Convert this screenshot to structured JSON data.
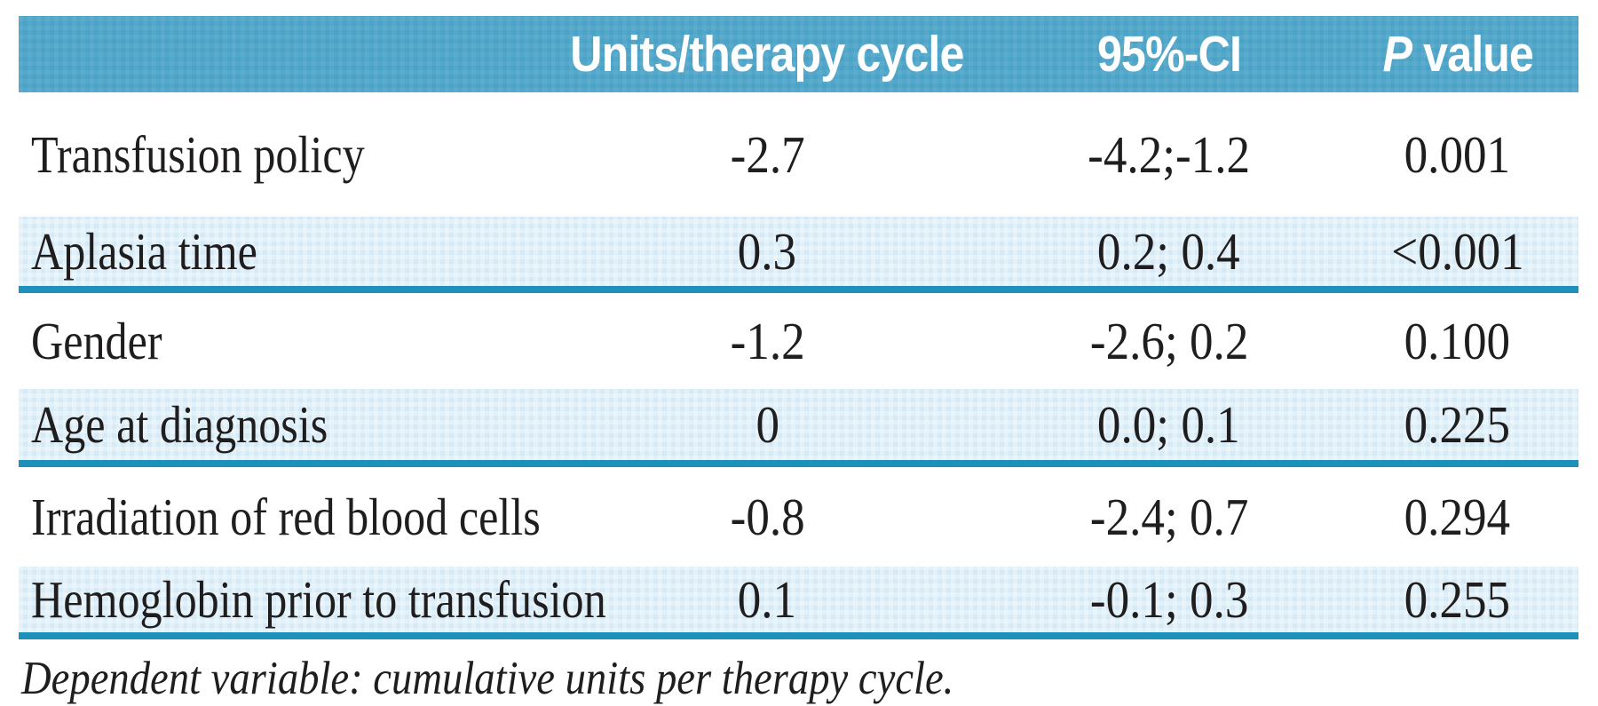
{
  "table": {
    "header": {
      "units_label": "Units/therapy cycle",
      "ci_label": "95%-CI",
      "p_italic": "P",
      "p_rest": "value"
    },
    "rows": [
      {
        "label": "Transfusion policy",
        "units": "-2.7",
        "ci": "-4.2;-1.2",
        "p": "0.001"
      },
      {
        "label": "Aplasia time",
        "units": "0.3",
        "ci": "0.2; 0.4",
        "p": "<0.001"
      },
      {
        "label": "Gender",
        "units": "-1.2",
        "ci": "-2.6; 0.2",
        "p": "0.100"
      },
      {
        "label": "Age at diagnosis",
        "units": "0",
        "ci": "0.0; 0.1",
        "p": "0.225"
      },
      {
        "label": "Irradiation of red blood cells",
        "units": "-0.8",
        "ci": "-2.4; 0.7",
        "p": "0.294"
      },
      {
        "label": "Hemoglobin prior to transfusion",
        "units": "0.1",
        "ci": "-0.1; 0.3",
        "p": "0.255"
      }
    ],
    "footnote": "Dependent variable: cumulative units per therapy cycle."
  },
  "colors": {
    "header_bg": "#4aa2c6",
    "header_text": "#ffffff",
    "shaded_row_bg": "#d6e9f4",
    "teal_rule": "#1e91bb",
    "body_text": "#1f1d1e"
  }
}
